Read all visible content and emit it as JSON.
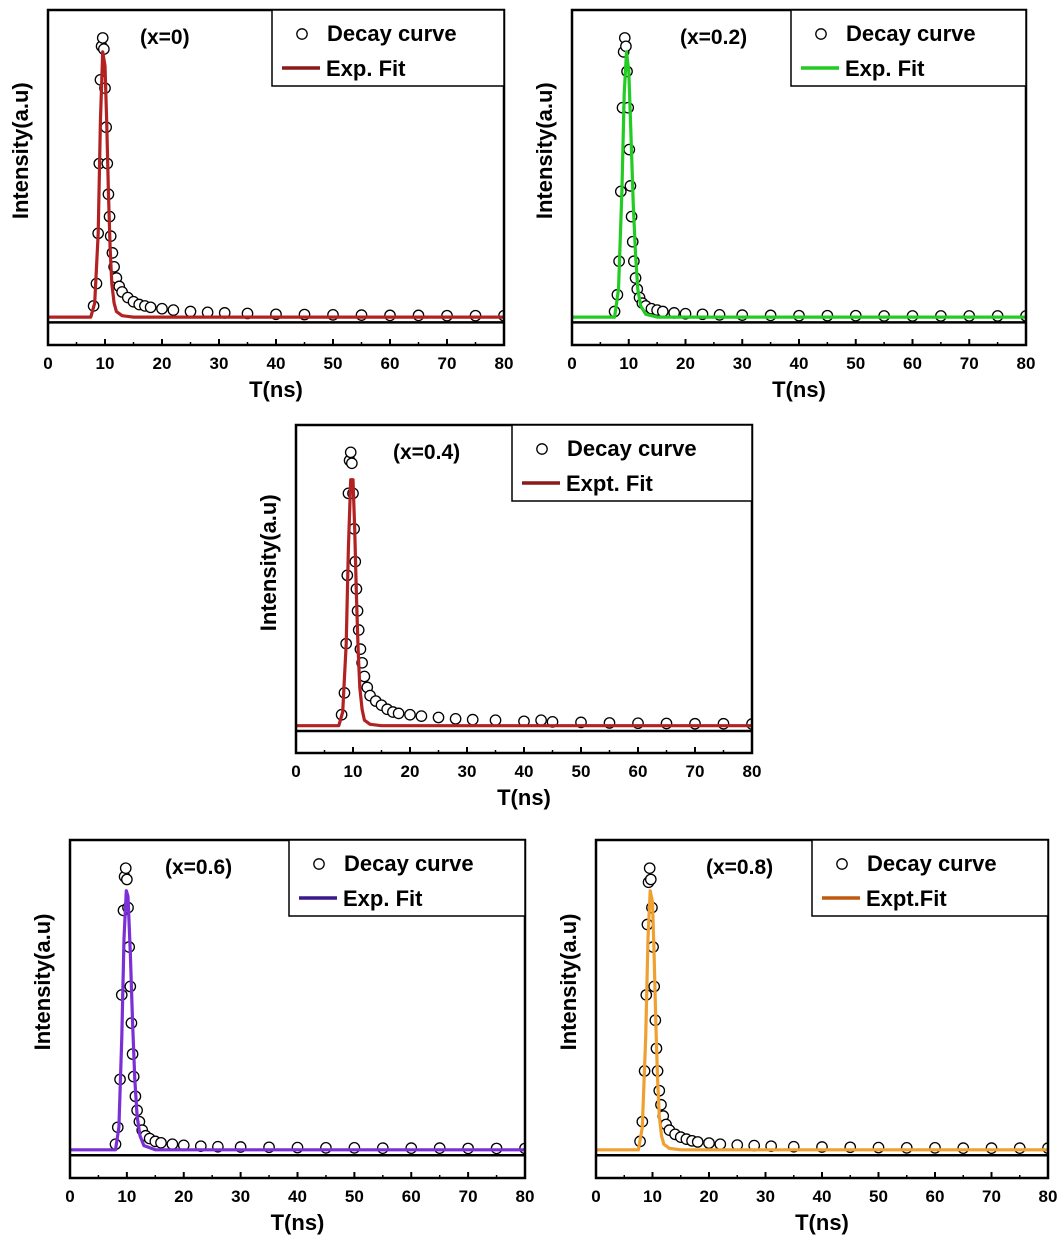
{
  "figure": {
    "panels": [
      {
        "condition_label": "(x=0)",
        "legend_markers_label": "Decay curve",
        "legend_fit_label": "Exp. Fit",
        "fit_color": "#b22222",
        "fit_legend_color": "#8b1a1a",
        "xlabel": "T(ns)",
        "ylabel": "Intensity(a.u)"
      },
      {
        "condition_label": "(x=0.2)",
        "legend_markers_label": "Decay curve",
        "legend_fit_label": "Exp. Fit",
        "fit_color": "#22cc22",
        "fit_legend_color": "#22cc22",
        "xlabel": "T(ns)",
        "ylabel": "Intensity(a.u)"
      },
      {
        "condition_label": "(x=0.4)",
        "legend_markers_label": "Decay curve",
        "legend_fit_label": "Expt. Fit",
        "fit_color": "#b22222",
        "fit_legend_color": "#8b1a1a",
        "xlabel": "T(ns)",
        "ylabel": "Intensity(a.u)"
      },
      {
        "condition_label": "(x=0.6)",
        "legend_markers_label": "Decay curve",
        "legend_fit_label": "Exp. Fit",
        "fit_color": "#7b2fd6",
        "fit_legend_color": "#3a1a8a",
        "xlabel": "T(ns)",
        "ylabel": "Intensity(a.u)"
      },
      {
        "condition_label": "(x=0.8)",
        "legend_markers_label": "Decay curve",
        "legend_fit_label": "Expt.Fit",
        "fit_color": "#f0a030",
        "fit_legend_color": "#c05a10",
        "xlabel": "T(ns)",
        "ylabel": "Intensity(a.u)"
      }
    ]
  },
  "chart_data": [
    {
      "type": "scatter",
      "xlabel": "T(ns)",
      "ylabel": "Intensity(a.u)",
      "xlim": [
        0,
        80
      ],
      "xticks": [
        "0",
        "10",
        "20",
        "30",
        "40",
        "50",
        "60",
        "70",
        "80"
      ],
      "ylim": [
        -0.1,
        1.1
      ],
      "y_tick_labels_shown": false,
      "legend_position": "top-right",
      "series": [
        {
          "name": "Decay curve",
          "marker": "open-circle",
          "x": [
            8,
            8.5,
            8.8,
            9,
            9.2,
            9.4,
            9.6,
            9.8,
            10,
            10.2,
            10.4,
            10.6,
            10.8,
            11,
            11.3,
            11.6,
            12,
            12.5,
            13,
            14,
            15,
            16,
            17,
            18,
            20,
            22,
            25,
            28,
            31,
            35,
            40,
            45,
            50,
            55,
            60,
            65,
            70,
            75,
            80
          ],
          "y": [
            0.04,
            0.12,
            0.3,
            0.55,
            0.85,
            0.97,
            1.0,
            0.96,
            0.82,
            0.68,
            0.55,
            0.44,
            0.36,
            0.29,
            0.23,
            0.18,
            0.14,
            0.11,
            0.09,
            0.07,
            0.055,
            0.045,
            0.04,
            0.035,
            0.03,
            0.025,
            0.02,
            0.017,
            0.015,
            0.013,
            0.01,
            0.009,
            0.008,
            0.007,
            0.006,
            0.006,
            0.005,
            0.005,
            0.005
          ]
        },
        {
          "name": "Exp. Fit",
          "x": [
            0,
            7.5,
            8.2,
            8.8,
            9.2,
            9.6,
            10,
            10.3,
            10.6,
            10.9,
            11.2,
            11.6,
            12,
            13,
            15,
            20,
            30,
            40,
            50,
            60,
            70,
            80
          ],
          "y": [
            0.0,
            0.0,
            0.05,
            0.3,
            0.7,
            0.95,
            0.9,
            0.7,
            0.45,
            0.25,
            0.12,
            0.05,
            0.02,
            0.005,
            0.0,
            0.0,
            0.0,
            0.0,
            0.0,
            0.0,
            0.0,
            0.0
          ]
        }
      ]
    },
    {
      "type": "scatter",
      "xlabel": "T(ns)",
      "ylabel": "Intensity(a.u)",
      "xlim": [
        0,
        80
      ],
      "xticks": [
        "0",
        "10",
        "20",
        "30",
        "40",
        "50",
        "60",
        "70",
        "80"
      ],
      "ylim": [
        -0.1,
        1.1
      ],
      "y_tick_labels_shown": false,
      "legend_position": "top-right",
      "series": [
        {
          "name": "Decay curve",
          "marker": "open-circle",
          "x": [
            7.5,
            8,
            8.3,
            8.6,
            8.9,
            9.1,
            9.3,
            9.5,
            9.7,
            9.9,
            10.1,
            10.3,
            10.5,
            10.7,
            10.9,
            11.2,
            11.5,
            11.9,
            12.4,
            13,
            14,
            15,
            16,
            18,
            20,
            23,
            26,
            30,
            35,
            40,
            45,
            50,
            55,
            60,
            65,
            70,
            75,
            80
          ],
          "y": [
            0.02,
            0.08,
            0.2,
            0.45,
            0.75,
            0.95,
            1.0,
            0.97,
            0.88,
            0.75,
            0.6,
            0.47,
            0.36,
            0.27,
            0.2,
            0.14,
            0.1,
            0.07,
            0.05,
            0.04,
            0.03,
            0.025,
            0.02,
            0.015,
            0.012,
            0.01,
            0.008,
            0.007,
            0.006,
            0.005,
            0.005,
            0.005,
            0.004,
            0.004,
            0.004,
            0.004,
            0.004,
            0.004
          ]
        },
        {
          "name": "Exp. Fit",
          "x": [
            0,
            7.5,
            8.2,
            8.8,
            9.2,
            9.6,
            10,
            10.4,
            10.8,
            11.2,
            11.6,
            12.1,
            13,
            15,
            20,
            30,
            40,
            50,
            60,
            70,
            80
          ],
          "y": [
            0.0,
            0.0,
            0.1,
            0.45,
            0.8,
            0.95,
            0.88,
            0.65,
            0.4,
            0.22,
            0.1,
            0.04,
            0.01,
            0.0,
            0.0,
            0.0,
            0.0,
            0.0,
            0.0,
            0.0,
            0.0
          ]
        }
      ]
    },
    {
      "type": "scatter",
      "xlabel": "T(ns)",
      "ylabel": "Intensity(a.u)",
      "xlim": [
        0,
        80
      ],
      "xticks": [
        "0",
        "10",
        "20",
        "30",
        "40",
        "50",
        "60",
        "70",
        "80"
      ],
      "ylim": [
        -0.1,
        1.1
      ],
      "y_tick_labels_shown": false,
      "legend_position": "top-right",
      "series": [
        {
          "name": "Decay curve",
          "marker": "open-circle",
          "x": [
            8,
            8.5,
            8.8,
            9,
            9.2,
            9.4,
            9.6,
            9.8,
            10,
            10.2,
            10.4,
            10.6,
            10.8,
            11,
            11.3,
            11.6,
            12,
            12.5,
            13,
            14,
            15,
            16,
            17,
            18,
            20,
            22,
            25,
            28,
            31,
            35,
            40,
            43,
            45,
            50,
            55,
            60,
            65,
            70,
            75,
            80
          ],
          "y": [
            0.04,
            0.12,
            0.3,
            0.55,
            0.85,
            0.97,
            1.0,
            0.96,
            0.85,
            0.72,
            0.6,
            0.5,
            0.42,
            0.35,
            0.28,
            0.23,
            0.18,
            0.14,
            0.11,
            0.09,
            0.075,
            0.06,
            0.05,
            0.045,
            0.04,
            0.035,
            0.03,
            0.025,
            0.022,
            0.02,
            0.016,
            0.02,
            0.014,
            0.012,
            0.01,
            0.009,
            0.008,
            0.007,
            0.007,
            0.006
          ]
        },
        {
          "name": "Expt. Fit",
          "x": [
            0,
            7.5,
            8.2,
            8.8,
            9.2,
            9.6,
            10,
            10.3,
            10.6,
            10.9,
            11.2,
            11.6,
            12,
            13,
            15,
            20,
            30,
            40,
            50,
            60,
            70,
            80
          ],
          "y": [
            0.0,
            0.0,
            0.05,
            0.3,
            0.65,
            0.9,
            0.9,
            0.72,
            0.48,
            0.28,
            0.14,
            0.06,
            0.02,
            0.005,
            0.0,
            0.0,
            0.0,
            0.0,
            0.0,
            0.0,
            0.0,
            0.0
          ]
        }
      ]
    },
    {
      "type": "scatter",
      "xlabel": "T(ns)",
      "ylabel": "Intensity(a.u)",
      "xlim": [
        0,
        80
      ],
      "xticks": [
        "0",
        "10",
        "20",
        "30",
        "40",
        "50",
        "60",
        "70",
        "80"
      ],
      "ylim": [
        -0.1,
        1.1
      ],
      "y_tick_labels_shown": false,
      "legend_position": "top-right",
      "series": [
        {
          "name": "Decay curve",
          "marker": "open-circle",
          "x": [
            8,
            8.4,
            8.8,
            9.1,
            9.4,
            9.6,
            9.8,
            10,
            10.2,
            10.4,
            10.6,
            10.8,
            11,
            11.2,
            11.5,
            11.8,
            12.2,
            12.7,
            13.3,
            14,
            15,
            16,
            18,
            20,
            23,
            26,
            30,
            35,
            40,
            45,
            50,
            55,
            60,
            65,
            70,
            75,
            80
          ],
          "y": [
            0.02,
            0.08,
            0.25,
            0.55,
            0.85,
            0.97,
            1.0,
            0.96,
            0.86,
            0.72,
            0.58,
            0.45,
            0.34,
            0.26,
            0.19,
            0.14,
            0.1,
            0.07,
            0.05,
            0.04,
            0.03,
            0.025,
            0.02,
            0.016,
            0.013,
            0.011,
            0.01,
            0.009,
            0.008,
            0.007,
            0.007,
            0.006,
            0.006,
            0.006,
            0.005,
            0.005,
            0.005
          ]
        },
        {
          "name": "Exp. Fit",
          "x": [
            0,
            8,
            8.6,
            9.1,
            9.5,
            9.9,
            10.2,
            10.6,
            11,
            11.4,
            11.8,
            12.3,
            13,
            15,
            20,
            30,
            40,
            50,
            60,
            70,
            80
          ],
          "y": [
            0.0,
            0.0,
            0.08,
            0.4,
            0.75,
            0.92,
            0.9,
            0.7,
            0.45,
            0.25,
            0.12,
            0.05,
            0.015,
            0.0,
            0.0,
            0.0,
            0.0,
            0.0,
            0.0,
            0.0,
            0.0
          ]
        }
      ]
    },
    {
      "type": "scatter",
      "xlabel": "T(ns)",
      "ylabel": "Intensity(a.u)",
      "xlim": [
        0,
        80
      ],
      "xticks": [
        "0",
        "10",
        "20",
        "30",
        "40",
        "50",
        "60",
        "70",
        "80"
      ],
      "ylim": [
        -0.1,
        1.1
      ],
      "y_tick_labels_shown": false,
      "legend_position": "top-right",
      "series": [
        {
          "name": "Decay curve",
          "marker": "open-circle",
          "x": [
            7.8,
            8.2,
            8.6,
            8.9,
            9.1,
            9.3,
            9.5,
            9.7,
            9.9,
            10.1,
            10.3,
            10.5,
            10.7,
            10.9,
            11.2,
            11.5,
            11.9,
            12.4,
            13,
            14,
            15,
            16,
            17,
            18,
            20,
            22,
            25,
            28,
            31,
            35,
            40,
            45,
            50,
            55,
            60,
            65,
            70,
            75,
            80
          ],
          "y": [
            0.03,
            0.1,
            0.28,
            0.55,
            0.8,
            0.95,
            1.0,
            0.96,
            0.86,
            0.72,
            0.58,
            0.46,
            0.36,
            0.28,
            0.21,
            0.16,
            0.12,
            0.09,
            0.07,
            0.055,
            0.045,
            0.038,
            0.032,
            0.028,
            0.024,
            0.02,
            0.017,
            0.015,
            0.013,
            0.011,
            0.01,
            0.009,
            0.008,
            0.007,
            0.007,
            0.006,
            0.006,
            0.006,
            0.006
          ]
        },
        {
          "name": "Expt.Fit",
          "x": [
            0,
            7.5,
            8.2,
            8.8,
            9.2,
            9.6,
            10,
            10.3,
            10.6,
            10.9,
            11.2,
            11.6,
            12,
            13,
            15,
            20,
            30,
            40,
            50,
            60,
            70,
            80
          ],
          "y": [
            0.0,
            0.0,
            0.08,
            0.4,
            0.75,
            0.92,
            0.88,
            0.68,
            0.44,
            0.25,
            0.12,
            0.05,
            0.02,
            0.005,
            0.0,
            0.0,
            0.0,
            0.0,
            0.0,
            0.0,
            0.0,
            0.0
          ]
        }
      ]
    }
  ]
}
